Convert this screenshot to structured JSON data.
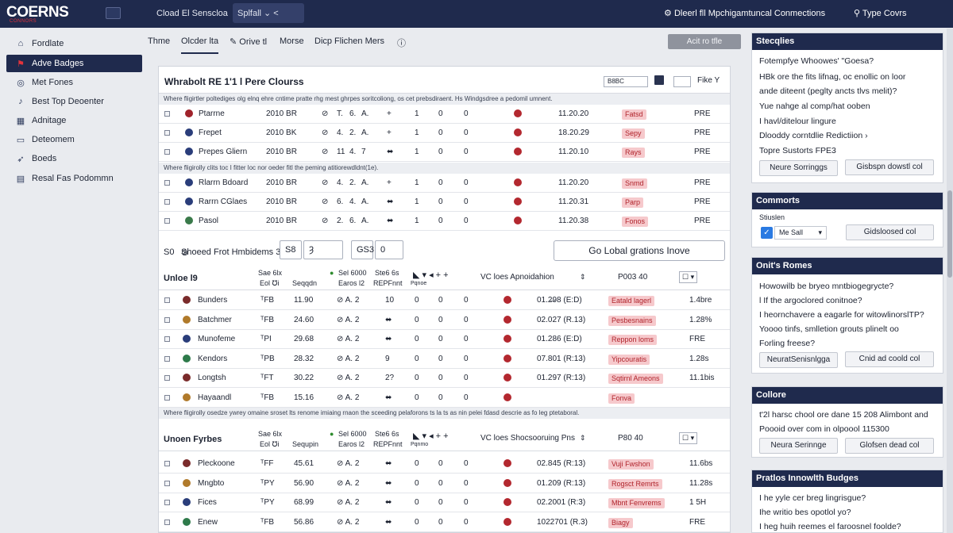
{
  "app": {
    "logo": "COERNS",
    "logo_sub": "CONNORS",
    "title": "Cload El Senscloa",
    "search": "Splfall ⌄ <",
    "right1": "Dleerl fll Mpchigamtuncal Conmections",
    "right2": "Type Covrs"
  },
  "sidebar": [
    {
      "label": "Fordlate",
      "icon": "home-icon"
    },
    {
      "label": "Adve Badges",
      "icon": "flag-icon"
    },
    {
      "label": "Met Fones",
      "icon": "target-icon"
    },
    {
      "label": "Best Top Deoenter",
      "icon": "bird-icon"
    },
    {
      "label": "Adnitage",
      "icon": "calendar-icon"
    },
    {
      "label": "Deteomem",
      "icon": "monitor-icon"
    },
    {
      "label": "Boeds",
      "icon": "rocket-icon"
    },
    {
      "label": "Resal Fas Podommn",
      "icon": "document-icon"
    }
  ],
  "tabs": [
    "Thme",
    "Olcder lta",
    "Orive tl",
    "Morse",
    "Dicp Flichen Mers"
  ],
  "tab_button": "Acit ro tfle",
  "main": {
    "title": "Whrabolt RE 1'1 l Pere Clourss",
    "select": "B8BC",
    "right_btn": "Fike Y",
    "note1": "Where fligirtler poltediges olg elnq ehre cntime pratte rhg mest ghrpes soritcoliong, os cet prebsdiraent. Hs Windgsdree a pedomil umnent.",
    "note2": "Where fligirolly clits toc I fitter loc nor oeder fitl the peming atitiorewdldnt(1e).",
    "group1": [
      {
        "name": "Ptarrne",
        "year": "2010 BR",
        "c1": "T.",
        "c2": "6.",
        "c3": "A.",
        "c4": "+",
        "n1": "1",
        "n2": "0",
        "n3": "0",
        "time": "11.20.20",
        "badge": "Fatsd",
        "code": "PRE",
        "dot": "#a0232b"
      },
      {
        "name": "Frepet",
        "year": "2010 BK",
        "c1": "4.",
        "c2": "2.",
        "c3": "A.",
        "c4": "+",
        "n1": "1",
        "n2": "0",
        "n3": "0",
        "time": "18.20.29",
        "badge": "Sepy",
        "code": "PRE",
        "dot": "#2a3d7a"
      },
      {
        "name": "Prepes Gliern",
        "year": "2010 BR",
        "c1": "11",
        "c2": "4.",
        "c3": "7",
        "c4": "⬌",
        "n1": "1",
        "n2": "0",
        "n3": "0",
        "time": "11.20.10",
        "badge": "Rays",
        "code": "PRE",
        "dot": "#2a3d7a"
      }
    ],
    "group2": [
      {
        "name": "Rlarrn Bdoard",
        "year": "2010 BR",
        "c1": "4.",
        "c2": "2.",
        "c3": "A.",
        "c4": "+",
        "n1": "1",
        "n2": "0",
        "n3": "0",
        "time": "11.20.20",
        "badge": "Snmd",
        "code": "PRE",
        "dot": "#2a3d7a"
      },
      {
        "name": "Rarrn CGlaes",
        "year": "2010 BR",
        "c1": "6.",
        "c2": "4.",
        "c3": "A.",
        "c4": "⬌",
        "n1": "1",
        "n2": "0",
        "n3": "0",
        "time": "11.20.31",
        "badge": "Parp",
        "code": "PRE",
        "dot": "#2a3d7a"
      },
      {
        "name": "Pasol",
        "year": "2010 BR",
        "c1": "2.",
        "c2": "6.",
        "c3": "A.",
        "c4": "⬌",
        "n1": "1",
        "n2": "0",
        "n3": "0",
        "time": "11.20.38",
        "badge": "Fonos",
        "code": "PRE",
        "dot": "#3a7a4a"
      }
    ],
    "ctrl": {
      "left": "S0",
      "label": "Shoeed Frot Hmbidems 3",
      "box1": "S8",
      "box2": "Ȝ",
      "box3": "GS3",
      "box4": "0",
      "go": "Go Lobal grations Inove"
    },
    "g3hdr": {
      "title": "Unloe l9",
      "a": "Eol ℧i",
      "b": "Seqqdn",
      "c": "Earos l2",
      "d": "REPFnnt",
      "e": "Pqnoe",
      "f": "VC loes Apnoidahion",
      "g": "P003 40",
      "top_a": "Sae 6lx",
      "top_b": "Sel 6000",
      "top_c": "Ste6 6s"
    },
    "group3": [
      {
        "name": "Bunders",
        "ab": "ᵀFB",
        "num": "11.90",
        "c4": "10",
        "n1": "0",
        "n2": "0",
        "time": "01.2̶98 (E:D)",
        "badge": "Eatald lagerl",
        "code": "1.4bre"
      },
      {
        "name": "Batchmer",
        "ab": "ᵀFB",
        "num": "24.60",
        "c4": "⬌",
        "n1": "0",
        "n2": "0",
        "time": "02.027 (R.13)",
        "badge": "Pesbesnains",
        "code": "1.28%"
      },
      {
        "name": "Munofeme",
        "ab": "ᵀPI",
        "num": "29.68",
        "c4": "⬌",
        "n1": "0",
        "n2": "0",
        "time": "01.286 (E:D)",
        "badge": "Reppon loms",
        "code": "FRE"
      },
      {
        "name": "Kendors",
        "ab": "ᵀPB",
        "num": "28.32",
        "c4": "9",
        "n1": "0",
        "n2": "0",
        "time": "07.801 (R:13)",
        "badge": "Yipcouratis",
        "code": "1.28s"
      },
      {
        "name": "Longtsh",
        "ab": "ᵀFT",
        "num": "30.22",
        "c4": "2?",
        "n1": "0",
        "n2": "0",
        "time": "01.297 (R:13)",
        "badge": "Sqtirnl Ameons",
        "code": "11.1bis"
      },
      {
        "name": "Hayaandl",
        "ab": "ᵀFB",
        "num": "15.16",
        "c4": "⬌",
        "n1": "0",
        "n2": "0",
        "time": "",
        "badge": "Fonva",
        "code": ""
      }
    ],
    "note3": "Where fligirolly osedze ywrey omaine sroset lts renome imiaing rnaon the sceeding pelaforons ts la ts as nin pelei fdasd descrie as fo leg ptetaboral.",
    "g4hdr": {
      "title": "Unoen Fyrbes",
      "a": "Eol ℧i",
      "b": "Sequpin",
      "c": "Earos l2",
      "d": "REPFnnt",
      "e": "Pqnmo",
      "f": "VC loes Shocsooruing Pns",
      "g": "P80 40",
      "top_a": "Sae 6lx",
      "top_b": "Sel 6000",
      "top_c": "Ste6 6s"
    },
    "group4": [
      {
        "name": "Pleckoone",
        "ab": "ᵀFF",
        "num": "45.61",
        "c4": "⬌",
        "n1": "0",
        "n2": "0",
        "time": "02.845 (R:13)",
        "badge": "Vuji Fwshon",
        "code": "11.6bs"
      },
      {
        "name": "Mngbto",
        "ab": "ᵀPY",
        "num": "56.90",
        "c4": "⬌",
        "n1": "0",
        "n2": "0",
        "time": "01.209 (R:13)",
        "badge": "Rogsct Remrts",
        "code": "11.28s"
      },
      {
        "name": "Fices",
        "ab": "ᵀPY",
        "num": "68.99",
        "c4": "⬌",
        "n1": "0",
        "n2": "0",
        "time": "02.2001 (R:3)",
        "badge": "Mbnt Fenvrems",
        "code": "1 5H"
      },
      {
        "name": "Enew",
        "ab": "ᵀFB",
        "num": "56.86",
        "c4": "⬌",
        "n1": "0",
        "n2": "0",
        "time": "1022701 (R.3)",
        "badge": "Biagy",
        "code": "FRE"
      }
    ]
  },
  "panels": {
    "p1": {
      "title": "Stecqlies",
      "lines": [
        "Fotempfye Whoowes' \"Goesa?",
        "HBk ore the fits lifnag, oc enollic on loor",
        "ande diteent (peglty ancts tlvs melit)?",
        "Yue nahge al comp/hat ooben",
        "I havl/ditelour lingure",
        "Dlooddy corntdlie Redictiion ›",
        "Topre Sustorts FPE3"
      ],
      "btn1": "Neure Sorringgs",
      "btn2": "Gisbspn dowstl col"
    },
    "p2": {
      "title": "Commorts",
      "sub": "Stiuslen",
      "select": "Me Sall",
      "btn": "Gidsloosed col"
    },
    "p3": {
      "title": "Onit's Romes",
      "lines": [
        "Howowilb be bryeo mntbiogegrycte?",
        "l If the argoclored conitnoe?",
        "I heornchavere a eagarle for witowlinorslTP?",
        "Yoooo tinfs, smlletion grouts plinelt oo",
        "Forling freese?"
      ],
      "btn1": "NeuratSenisnlgga",
      "btn2": "Cnid ad coold col"
    },
    "p4": {
      "title": "Collore",
      "lines": [
        "t'2l harsc chool ore dane 15 208 Alimbont and",
        "Poooid over com in olpoool 115300"
      ],
      "btn1": "Neura Serinnge",
      "btn2": "Glofsen dead col"
    },
    "p5": {
      "title": "Pratlos Innowlth Budges",
      "lines": [
        "I he yyle cer breg lingrisgue?",
        "Ihe writio bes opotlol yo?",
        "I heg huih reemes el faroosnel foolde?"
      ]
    }
  }
}
